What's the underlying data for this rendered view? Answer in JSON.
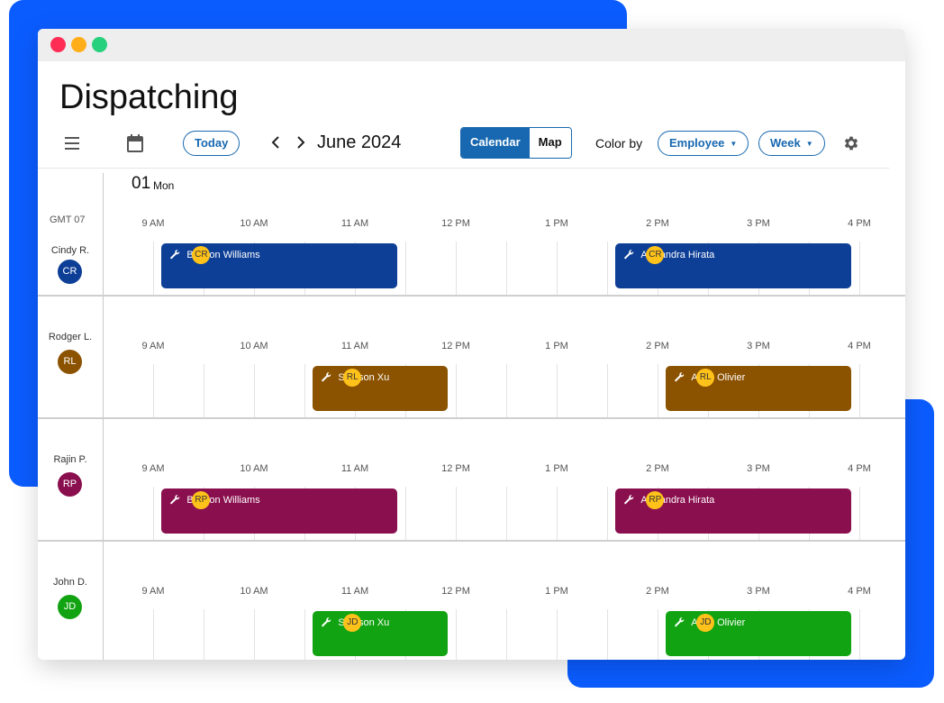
{
  "window": {
    "title": "Dispatching"
  },
  "toolbar": {
    "today_label": "Today",
    "month_label": "June 2024",
    "view_calendar": "Calendar",
    "view_map": "Map",
    "color_by_label": "Color by",
    "color_by_value": "Employee",
    "range_value": "Week"
  },
  "calendar": {
    "day_number": "01",
    "day_name": "Mon",
    "timezone": "GMT 07",
    "hours": [
      "9 AM",
      "10 AM",
      "11 AM",
      "12 PM",
      "1 PM",
      "2 PM",
      "3 PM",
      "4 PM"
    ]
  },
  "employees": [
    {
      "name": "Cindy R.",
      "initials": "CR",
      "color": "#0d3f96",
      "jobs": [
        {
          "customer": "Benson Williams",
          "start": "9:05 AM",
          "end": "11:25 AM"
        },
        {
          "customer": "Alexandra Hirata",
          "start": "1:35 PM",
          "end": "3:55 PM"
        }
      ]
    },
    {
      "name": "Rodger L.",
      "initials": "RL",
      "color": "#8b5200",
      "jobs": [
        {
          "customer": "Samson Xu",
          "start": "10:35 AM",
          "end": "11:55 AM"
        },
        {
          "customer": "Anne Olivier",
          "start": "2:05 PM",
          "end": "3:55 PM"
        }
      ]
    },
    {
      "name": "Rajin P.",
      "initials": "RP",
      "color": "#8a0f4e",
      "jobs": [
        {
          "customer": "Benson Williams",
          "start": "9:05 AM",
          "end": "11:25 AM"
        },
        {
          "customer": "Alexandra Hirata",
          "start": "1:35 PM",
          "end": "3:55 PM"
        }
      ]
    },
    {
      "name": "John D.",
      "initials": "JD",
      "color": "#12a312",
      "jobs": [
        {
          "customer": "Samson Xu",
          "start": "10:35 AM",
          "end": "11:55 AM"
        },
        {
          "customer": "Anne Olivier",
          "start": "2:05 PM",
          "end": "3:55 PM"
        }
      ]
    }
  ],
  "colors": {
    "accent": "#1768b0",
    "badge": "#ffc21a",
    "background_brand": "#0b5cff"
  }
}
